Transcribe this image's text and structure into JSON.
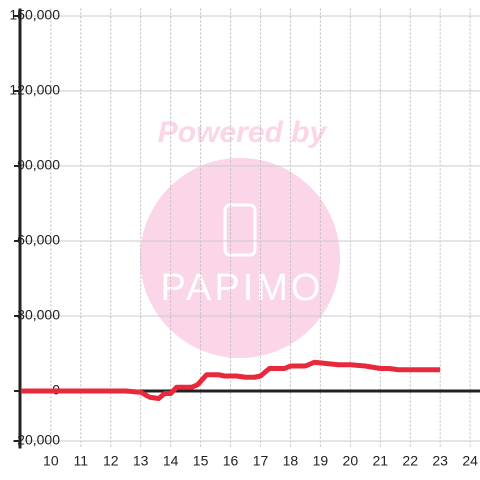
{
  "chart_data": {
    "type": "line",
    "watermark": {
      "line1": "Powered by",
      "line2": "PAPIMO"
    },
    "x": [
      9,
      12.5,
      13,
      13.3,
      13.6,
      13.8,
      14,
      14.2,
      14.7,
      14.9,
      15.2,
      15.6,
      15.8,
      16.2,
      16.5,
      16.8,
      17,
      17.3,
      17.8,
      18,
      18.5,
      18.8,
      19.2,
      19.6,
      20,
      20.5,
      21,
      21.3,
      21.6,
      22,
      23
    ],
    "series": [
      {
        "color": "#e8293b",
        "values": [
          0,
          0,
          -500,
          -2500,
          -3000,
          -1000,
          -1000,
          1500,
          1500,
          2500,
          6500,
          6500,
          6000,
          6000,
          5500,
          5500,
          6000,
          9000,
          9000,
          10000,
          10000,
          11500,
          11000,
          10500,
          10500,
          10000,
          9000,
          9000,
          8500,
          8500,
          8500
        ]
      }
    ],
    "xlim": [
      8.97,
      24.33
    ],
    "xticks": [
      10,
      11,
      12,
      13,
      14,
      15,
      16,
      17,
      18,
      19,
      20,
      21,
      22,
      23,
      24
    ],
    "ylim": [
      -23000,
      153000
    ],
    "yticks": [
      {
        "value": -20000,
        "label": "-20,000"
      },
      0,
      {
        "value": 30000,
        "label": "30,000"
      },
      {
        "value": 60000,
        "label": "60,000"
      },
      {
        "value": 90000,
        "label": "90,000"
      },
      {
        "value": 120000,
        "label": "120,000"
      },
      {
        "value": 150000,
        "label": "150,000"
      }
    ],
    "grid": true
  }
}
